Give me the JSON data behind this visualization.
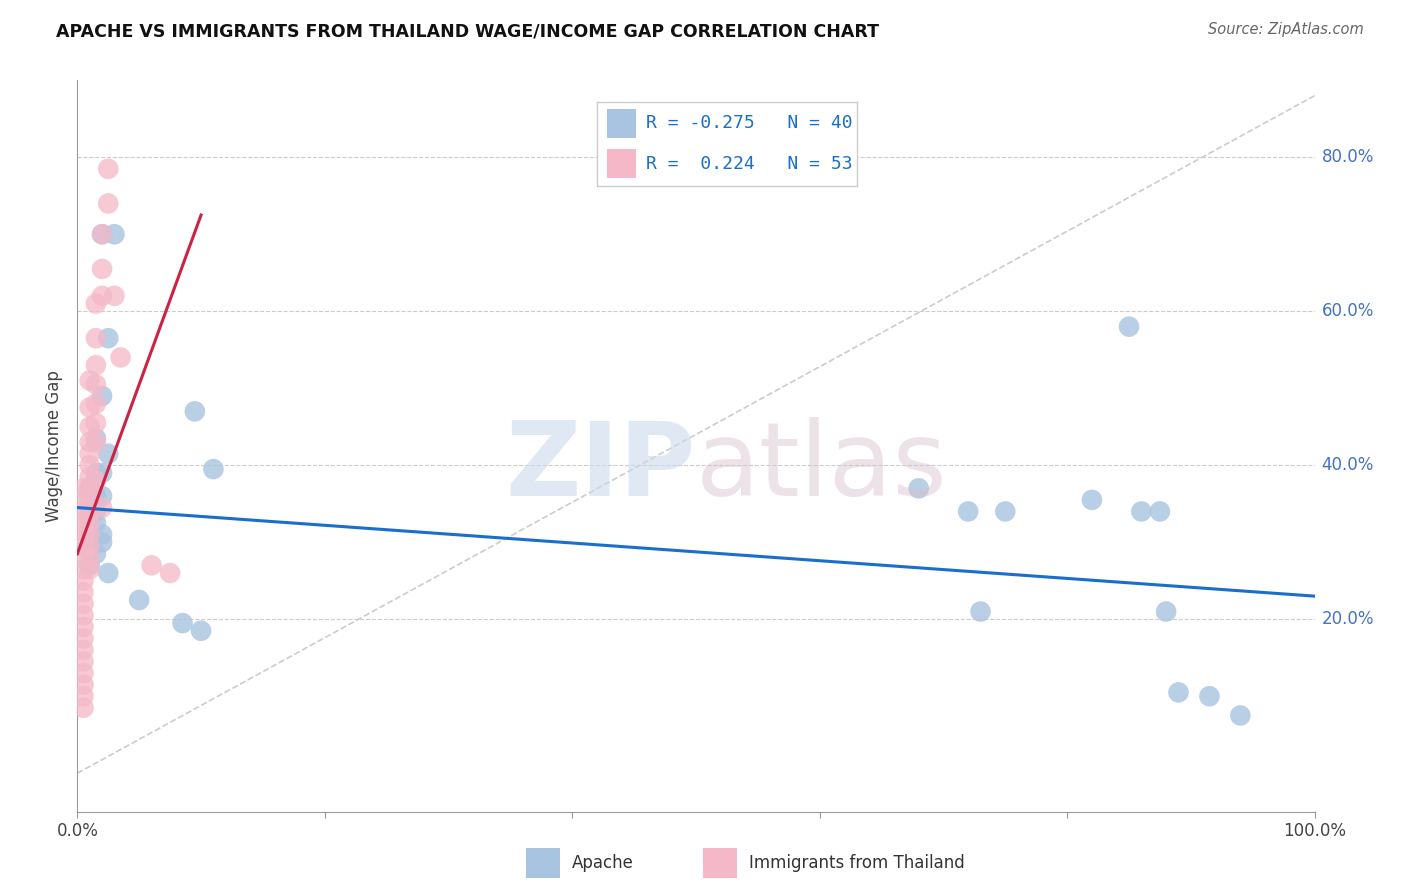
{
  "title": "APACHE VS IMMIGRANTS FROM THAILAND WAGE/INCOME GAP CORRELATION CHART",
  "source": "Source: ZipAtlas.com",
  "ylabel": "Wage/Income Gap",
  "xlim": [
    0.0,
    1.0
  ],
  "ylim": [
    -0.05,
    0.9
  ],
  "ytick_positions": [
    0.2,
    0.4,
    0.6,
    0.8
  ],
  "ytick_labels": [
    "20.0%",
    "40.0%",
    "60.0%",
    "80.0%"
  ],
  "xtick_positions": [
    0.0,
    0.2,
    0.4,
    0.6,
    0.8,
    1.0
  ],
  "xtick_labels": [
    "0.0%",
    "",
    "",
    "",
    "",
    "100.0%"
  ],
  "color_apache": "#a8c4e0",
  "color_thailand": "#f4b8c8",
  "color_apache_line": "#1a6fcc",
  "color_thailand_line": "#cc2244",
  "color_grid": "#cccccc",
  "color_diag": "#bbbbbb",
  "apache_scatter": [
    [
      0.02,
      0.7
    ],
    [
      0.03,
      0.7
    ],
    [
      0.025,
      0.565
    ],
    [
      0.02,
      0.49
    ],
    [
      0.015,
      0.435
    ],
    [
      0.025,
      0.415
    ],
    [
      0.015,
      0.39
    ],
    [
      0.02,
      0.39
    ],
    [
      0.01,
      0.37
    ],
    [
      0.015,
      0.36
    ],
    [
      0.02,
      0.36
    ],
    [
      0.01,
      0.34
    ],
    [
      0.015,
      0.34
    ],
    [
      0.01,
      0.325
    ],
    [
      0.015,
      0.325
    ],
    [
      0.01,
      0.31
    ],
    [
      0.02,
      0.31
    ],
    [
      0.01,
      0.3
    ],
    [
      0.02,
      0.3
    ],
    [
      0.01,
      0.29
    ],
    [
      0.015,
      0.285
    ],
    [
      0.01,
      0.27
    ],
    [
      0.025,
      0.26
    ],
    [
      0.05,
      0.225
    ],
    [
      0.085,
      0.195
    ],
    [
      0.1,
      0.185
    ],
    [
      0.095,
      0.47
    ],
    [
      0.11,
      0.395
    ],
    [
      0.68,
      0.37
    ],
    [
      0.72,
      0.34
    ],
    [
      0.73,
      0.21
    ],
    [
      0.75,
      0.34
    ],
    [
      0.82,
      0.355
    ],
    [
      0.86,
      0.34
    ],
    [
      0.875,
      0.34
    ],
    [
      0.88,
      0.21
    ],
    [
      0.89,
      0.105
    ],
    [
      0.915,
      0.1
    ],
    [
      0.94,
      0.075
    ],
    [
      0.85,
      0.58
    ]
  ],
  "thailand_scatter": [
    [
      0.005,
      0.37
    ],
    [
      0.005,
      0.355
    ],
    [
      0.005,
      0.34
    ],
    [
      0.005,
      0.325
    ],
    [
      0.005,
      0.31
    ],
    [
      0.005,
      0.295
    ],
    [
      0.005,
      0.28
    ],
    [
      0.005,
      0.265
    ],
    [
      0.005,
      0.25
    ],
    [
      0.005,
      0.235
    ],
    [
      0.005,
      0.22
    ],
    [
      0.005,
      0.205
    ],
    [
      0.005,
      0.19
    ],
    [
      0.005,
      0.175
    ],
    [
      0.005,
      0.16
    ],
    [
      0.005,
      0.145
    ],
    [
      0.005,
      0.13
    ],
    [
      0.005,
      0.115
    ],
    [
      0.005,
      0.1
    ],
    [
      0.005,
      0.085
    ],
    [
      0.01,
      0.51
    ],
    [
      0.01,
      0.475
    ],
    [
      0.01,
      0.45
    ],
    [
      0.01,
      0.43
    ],
    [
      0.01,
      0.415
    ],
    [
      0.01,
      0.4
    ],
    [
      0.01,
      0.385
    ],
    [
      0.01,
      0.37
    ],
    [
      0.01,
      0.355
    ],
    [
      0.01,
      0.34
    ],
    [
      0.01,
      0.325
    ],
    [
      0.01,
      0.31
    ],
    [
      0.01,
      0.295
    ],
    [
      0.01,
      0.28
    ],
    [
      0.01,
      0.265
    ],
    [
      0.015,
      0.61
    ],
    [
      0.015,
      0.565
    ],
    [
      0.015,
      0.53
    ],
    [
      0.015,
      0.505
    ],
    [
      0.015,
      0.48
    ],
    [
      0.015,
      0.455
    ],
    [
      0.015,
      0.43
    ],
    [
      0.02,
      0.7
    ],
    [
      0.02,
      0.655
    ],
    [
      0.02,
      0.62
    ],
    [
      0.025,
      0.785
    ],
    [
      0.025,
      0.74
    ],
    [
      0.03,
      0.62
    ],
    [
      0.035,
      0.54
    ],
    [
      0.015,
      0.38
    ],
    [
      0.02,
      0.345
    ],
    [
      0.06,
      0.27
    ],
    [
      0.075,
      0.26
    ]
  ],
  "apache_line_x": [
    0.0,
    1.0
  ],
  "apache_line_y": [
    0.345,
    0.23
  ],
  "thailand_line_x": [
    0.0,
    0.1
  ],
  "thailand_line_y": [
    0.285,
    0.725
  ],
  "diag_line_x": [
    0.0,
    1.0
  ],
  "diag_line_y": [
    0.0,
    0.88
  ],
  "legend_r1": "-0.275",
  "legend_n1": "40",
  "legend_r2": "0.224",
  "legend_n2": "53"
}
